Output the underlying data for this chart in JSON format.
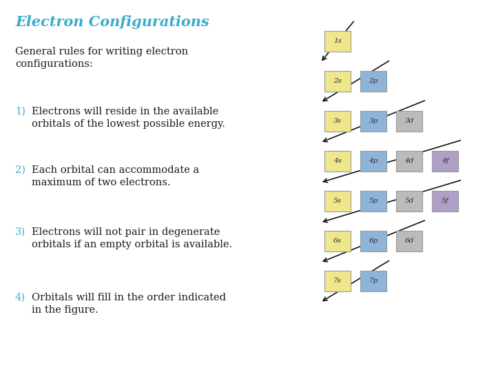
{
  "title": "Electron Configurations",
  "title_color": "#3AACCB",
  "body_color": "#1a1a1a",
  "accent_color": "#3AACCB",
  "bg_color": "#ffffff",
  "intro_text": "General rules for writing electron\nconfigurations:",
  "rules": [
    {
      "num": "1)",
      "text": "Electrons will reside in the available\norbitals of the lowest possible energy."
    },
    {
      "num": "2)",
      "text": "Each orbital can accommodate a\nmaximum of two electrons."
    },
    {
      "num": "3)",
      "text": "Electrons will not pair in degenerate\norbitals if an empty orbital is available."
    },
    {
      "num": "4)",
      "text": "Orbitals will fill in the order indicated\nin the figure."
    }
  ],
  "orbitals": [
    {
      "label": "1s",
      "col": 0,
      "row": 0,
      "color": "#F0E68C"
    },
    {
      "label": "2s",
      "col": 0,
      "row": 1,
      "color": "#F0E68C"
    },
    {
      "label": "2p",
      "col": 1,
      "row": 1,
      "color": "#8FB4D9"
    },
    {
      "label": "3s",
      "col": 0,
      "row": 2,
      "color": "#F0E68C"
    },
    {
      "label": "3p",
      "col": 1,
      "row": 2,
      "color": "#8FB4D9"
    },
    {
      "label": "3d",
      "col": 2,
      "row": 2,
      "color": "#BBBBBB"
    },
    {
      "label": "4s",
      "col": 0,
      "row": 3,
      "color": "#F0E68C"
    },
    {
      "label": "4p",
      "col": 1,
      "row": 3,
      "color": "#8FB4D9"
    },
    {
      "label": "4d",
      "col": 2,
      "row": 3,
      "color": "#BBBBBB"
    },
    {
      "label": "4f",
      "col": 3,
      "row": 3,
      "color": "#B0A0C8"
    },
    {
      "label": "5s",
      "col": 0,
      "row": 4,
      "color": "#F0E68C"
    },
    {
      "label": "5p",
      "col": 1,
      "row": 4,
      "color": "#8FB4D9"
    },
    {
      "label": "5d",
      "col": 2,
      "row": 4,
      "color": "#BBBBBB"
    },
    {
      "label": "5f",
      "col": 3,
      "row": 4,
      "color": "#B0A0C8"
    },
    {
      "label": "6s",
      "col": 0,
      "row": 5,
      "color": "#F0E68C"
    },
    {
      "label": "6p",
      "col": 1,
      "row": 5,
      "color": "#8FB4D9"
    },
    {
      "label": "6d",
      "col": 2,
      "row": 5,
      "color": "#BBBBBB"
    },
    {
      "label": "7s",
      "col": 0,
      "row": 6,
      "color": "#F0E68C"
    },
    {
      "label": "7p",
      "col": 1,
      "row": 6,
      "color": "#8FB4D9"
    }
  ],
  "fig_width": 7.2,
  "fig_height": 5.4,
  "dpi": 100
}
